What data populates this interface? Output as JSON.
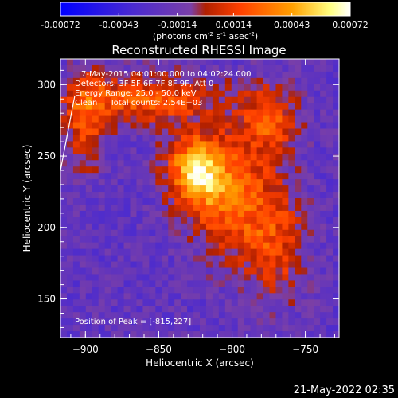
{
  "colorbar": {
    "ticks": [
      "-0.00072",
      "-0.00043",
      "-0.00014",
      "0.00014",
      "0.00043",
      "0.00072"
    ],
    "tick_values": [
      -0.00072,
      -0.00043,
      -0.00014,
      0.00014,
      0.00043,
      0.00072
    ],
    "range": [
      -0.00072,
      0.00072
    ],
    "units_text": "(photons cm",
    "units_exp1": "-2",
    "units_mid": " s",
    "units_exp2": "-1",
    "units_mid2": " asec",
    "units_exp3": "-2",
    "units_end": ")"
  },
  "annotations": [
    "7-May-2015 04:01:00.000 to 04:02:24.000",
    "Detectors: 3F 5F 6F 7F 8F 9F, Att 0",
    "Energy Range: 25.0 - 50.0 keV",
    "Clean     Total counts: 2.54E+03"
  ],
  "peak_label": "Position of Peak = [-815,227]",
  "timestamp": "21-May-2022 02:35",
  "colors": {
    "background": "#000000",
    "colormap": [
      "#0000ff",
      "#4a2ad0",
      "#7a3fa8",
      "#b02000",
      "#ff4000",
      "#ffa000",
      "#ffff80",
      "#ffffff"
    ]
  },
  "chart_data": {
    "type": "heatmap",
    "title": "Reconstructed RHESSI Image",
    "xlabel": "Heliocentric X (arcsec)",
    "ylabel": "Heliocentric Y (arcsec)",
    "xlim": [
      -917,
      -727
    ],
    "ylim": [
      123,
      318
    ],
    "x_ticks": [
      -900,
      -850,
      -800,
      -750
    ],
    "y_ticks": [
      150,
      200,
      250,
      300
    ],
    "peak_position": [
      -815,
      227
    ],
    "sources": [
      {
        "x": -825,
        "y": 240,
        "amplitude": 0.00072,
        "sigma_x": 14,
        "sigma_y": 18
      },
      {
        "x": -800,
        "y": 220,
        "amplitude": 0.00045,
        "sigma_x": 18,
        "sigma_y": 30
      },
      {
        "x": -770,
        "y": 190,
        "amplitude": 0.00035,
        "sigma_x": 14,
        "sigma_y": 30
      },
      {
        "x": -860,
        "y": 290,
        "amplitude": 0.00045,
        "sigma_x": 35,
        "sigma_y": 12
      },
      {
        "x": -775,
        "y": 275,
        "amplitude": 0.0004,
        "sigma_x": 14,
        "sigma_y": 18
      },
      {
        "x": -900,
        "y": 275,
        "amplitude": 0.00035,
        "sigma_x": 10,
        "sigma_y": 25
      }
    ]
  }
}
